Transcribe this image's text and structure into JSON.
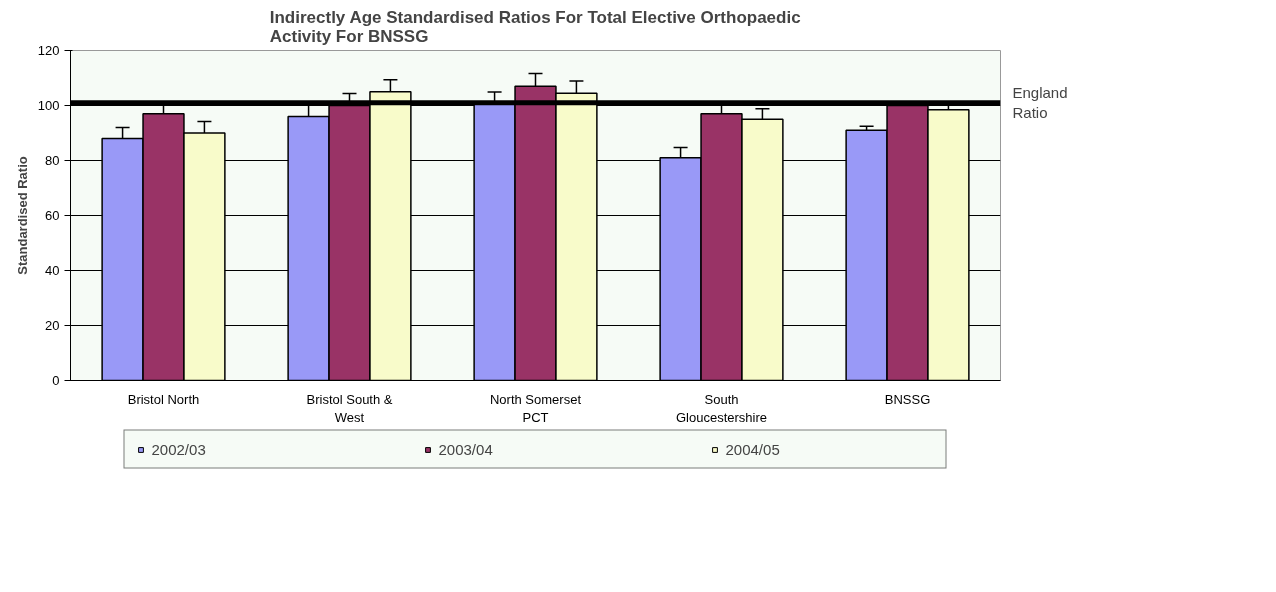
{
  "chart_data": {
    "type": "bar",
    "title": "Indirectly Age Standardised Ratios For Total Elective Orthopaedic\nActivity For BNSSG",
    "ylabel": "Standardised Ratio",
    "categories": [
      "Bristol North",
      "Bristol South &\nWest",
      "North Somerset\nPCT",
      "South\nGloucestershire",
      "BNSSG"
    ],
    "series": [
      {
        "name": "2002/03",
        "color": "#9999f7",
        "values": [
          88,
          96,
          100.5,
          81,
          91
        ],
        "errors": [
          4,
          4.3,
          4.4,
          3.7,
          1.5
        ]
      },
      {
        "name": "2003/04",
        "color": "#993366",
        "values": [
          97,
          100,
          107,
          97,
          100
        ],
        "errors": [
          3.6,
          4.4,
          4.6,
          3.6,
          1.3
        ]
      },
      {
        "name": "2004/05",
        "color": "#f8fbca",
        "values": [
          90,
          105,
          104.5,
          95,
          98.5
        ],
        "errors": [
          4.2,
          4.4,
          4.4,
          3.8,
          2
        ]
      }
    ],
    "ylim": [
      0,
      120
    ],
    "yticks": [
      0,
      20,
      40,
      60,
      80,
      100,
      120
    ],
    "grid": "y",
    "legend": "bottom",
    "ref_lines": [
      {
        "axis": "y",
        "value": 101,
        "label": "England\nRatio"
      }
    ]
  }
}
